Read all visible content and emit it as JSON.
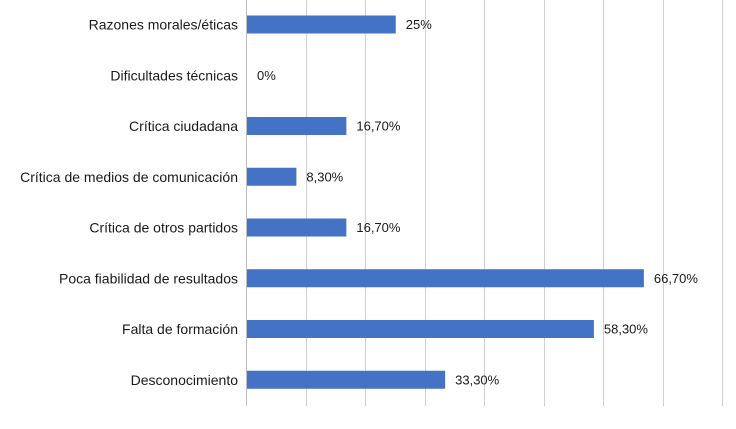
{
  "chart_data": {
    "type": "bar",
    "orientation": "horizontal",
    "title": "",
    "xlabel": "",
    "ylabel": "",
    "categories": [
      "Razones morales/éticas",
      "Dificultades técnicas",
      "Crítica ciudadana",
      "Crítica de medios de comunicación",
      "Crítica de otros partidos",
      "Poca fiabilidad de resultados",
      "Falta de formación",
      "Desconocimiento"
    ],
    "values": [
      25,
      0,
      16.7,
      8.3,
      16.7,
      66.7,
      58.3,
      33.3
    ],
    "data_labels": [
      "25%",
      "0%",
      "16,70%",
      "8,30%",
      "16,70%",
      "66,70%",
      "58,30%",
      "33,30%"
    ],
    "xlim": [
      0,
      80
    ],
    "grid": true,
    "legend": "none",
    "bar_color": "#4472c4"
  }
}
